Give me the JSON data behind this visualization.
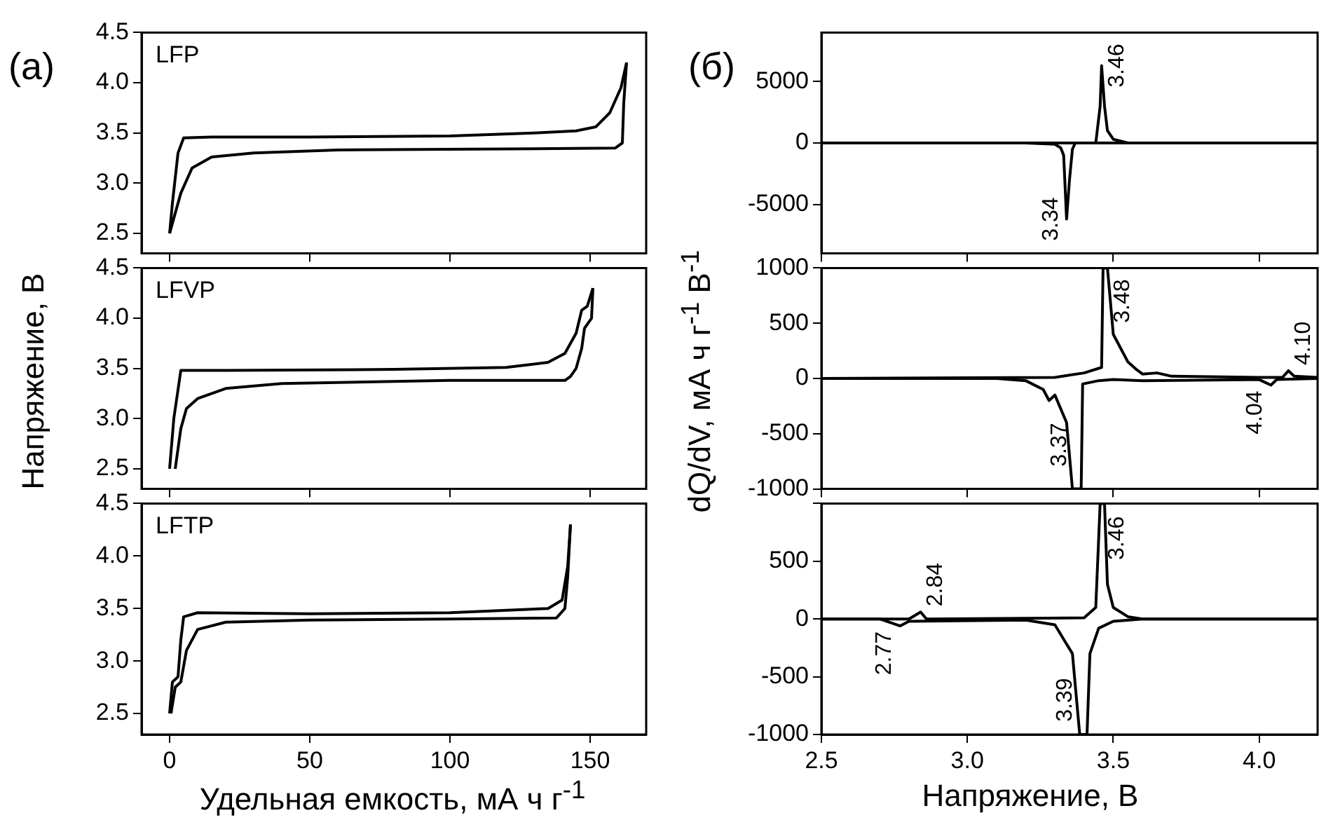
{
  "chart_data": [
    {
      "type": "line",
      "title": "LFP",
      "annotations": [
        "(a)"
      ],
      "xlim": [
        -10,
        170
      ],
      "xticks": [
        {
          "value": 0,
          "label": null
        },
        {
          "value": 50,
          "label": null
        },
        {
          "value": 100,
          "label": null
        },
        {
          "value": 150,
          "label": null
        }
      ],
      "ylim": [
        2.3,
        4.5
      ],
      "yticks": [
        {
          "value": 2.5,
          "label": "2.5"
        },
        {
          "value": 3,
          "label": "3.0"
        },
        {
          "value": 3.5,
          "label": "3.5"
        },
        {
          "value": 4,
          "label": "4.0"
        },
        {
          "value": 4.5,
          "label": "4.5"
        }
      ],
      "tick_labels": "y",
      "legend": false,
      "series": [
        {
          "color": "#000000",
          "x": [
            0,
            1,
            3,
            5,
            15,
            50,
            100,
            130,
            145,
            152,
            157,
            161,
            163
          ],
          "values": [
            2.5,
            2.8,
            3.3,
            3.45,
            3.46,
            3.46,
            3.47,
            3.5,
            3.52,
            3.56,
            3.7,
            3.95,
            4.2
          ]
        },
        {
          "color": "#000000",
          "x": [
            163,
            162,
            161.5,
            159,
            120,
            60,
            30,
            15,
            8,
            4,
            1,
            0
          ],
          "values": [
            4.2,
            3.8,
            3.4,
            3.35,
            3.34,
            3.33,
            3.3,
            3.26,
            3.15,
            2.9,
            2.6,
            2.5
          ]
        }
      ]
    },
    {
      "type": "line",
      "title": "LFVP",
      "ylabel": "Напряжение, В",
      "xlim": [
        -10,
        170
      ],
      "xticks": [
        {
          "value": 0,
          "label": null
        },
        {
          "value": 50,
          "label": null
        },
        {
          "value": 100,
          "label": null
        },
        {
          "value": 150,
          "label": null
        }
      ],
      "ylim": [
        2.3,
        4.5
      ],
      "yticks": [
        {
          "value": 2.5,
          "label": "2.5"
        },
        {
          "value": 3,
          "label": "3.0"
        },
        {
          "value": 3.5,
          "label": "3.5"
        },
        {
          "value": 4,
          "label": "4.0"
        },
        {
          "value": 4.5,
          "label": "4.5"
        }
      ],
      "tick_labels": "y",
      "legend": false,
      "series": [
        {
          "color": "#000000",
          "x": [
            0,
            1.5,
            4,
            20,
            80,
            120,
            135,
            141,
            145,
            147,
            149,
            151
          ],
          "values": [
            2.5,
            3.0,
            3.48,
            3.48,
            3.49,
            3.51,
            3.56,
            3.65,
            3.85,
            4.08,
            4.12,
            4.3
          ]
        },
        {
          "color": "#000000",
          "x": [
            151,
            150.5,
            148,
            147,
            145,
            143,
            141,
            100,
            40,
            20,
            10,
            6,
            4,
            2
          ],
          "values": [
            4.3,
            4.0,
            3.9,
            3.7,
            3.5,
            3.42,
            3.38,
            3.38,
            3.35,
            3.3,
            3.2,
            3.1,
            2.9,
            2.5
          ]
        }
      ]
    },
    {
      "type": "line",
      "title": "LFTP",
      "xlabel": "Удельная емкость, мА ч г$^{-1}$",
      "xlim": [
        -10,
        170
      ],
      "xticks": [
        0,
        50,
        100,
        150
      ],
      "ylim": [
        2.3,
        4.5
      ],
      "yticks": [
        {
          "value": 2.5,
          "label": "2.5"
        },
        {
          "value": 3,
          "label": "3.0"
        },
        {
          "value": 3.5,
          "label": "3.5"
        },
        {
          "value": 4,
          "label": "4.0"
        },
        {
          "value": 4.5,
          "label": "4.5"
        }
      ],
      "legend": false,
      "series": [
        {
          "color": "#000000",
          "x": [
            0,
            1,
            3,
            4,
            5,
            10,
            50,
            100,
            135,
            140,
            142,
            143
          ],
          "values": [
            2.5,
            2.8,
            2.85,
            3.2,
            3.42,
            3.46,
            3.45,
            3.46,
            3.5,
            3.58,
            3.9,
            4.3
          ]
        },
        {
          "color": "#000000",
          "x": [
            143,
            142,
            141,
            138,
            100,
            50,
            20,
            10,
            6,
            4,
            2,
            0.5
          ],
          "values": [
            4.3,
            3.8,
            3.5,
            3.41,
            3.4,
            3.39,
            3.37,
            3.3,
            3.1,
            2.8,
            2.75,
            2.5
          ]
        }
      ]
    },
    {
      "type": "line",
      "annotations": [
        "(б)",
        {
          "text": "3.46",
          "x": 3.46,
          "y": 6300
        },
        {
          "text": "3.34",
          "x": 3.34,
          "y": -6200
        }
      ],
      "xlim": [
        2.5,
        4.2
      ],
      "xticks": [
        {
          "value": 2.5,
          "label": null
        },
        {
          "value": 3,
          "label": null
        },
        {
          "value": 3.5,
          "label": null
        },
        {
          "value": 4,
          "label": null
        }
      ],
      "ylim": [
        -9000,
        9000
      ],
      "yticks": [
        -5000,
        0,
        5000
      ],
      "tick_labels": "y",
      "legend": false,
      "series": [
        {
          "color": "#000000",
          "x": [
            2.5,
            3.44,
            3.455,
            3.46,
            3.47,
            3.48,
            3.5,
            3.55,
            3.6,
            4.2
          ],
          "values": [
            0,
            0,
            3000,
            6300,
            3000,
            1000,
            300,
            0,
            0,
            0
          ]
        },
        {
          "color": "#000000",
          "x": [
            2.5,
            3.2,
            3.3,
            3.32,
            3.33,
            3.34,
            3.35,
            3.36,
            3.37,
            4.2
          ],
          "values": [
            0,
            0,
            -100,
            -400,
            -1000,
            -6200,
            -3000,
            -500,
            0,
            0
          ]
        }
      ]
    },
    {
      "type": "line",
      "ylabel": "dQ/dV, мА ч г$^{-1}$ В$^{-1}$",
      "annotations": [
        {
          "text": "3.48",
          "x": 3.48,
          "y": 700
        },
        {
          "text": "3.37",
          "x": 3.37,
          "y": -600
        },
        {
          "text": "4.10",
          "x": 4.1,
          "y": 70
        },
        {
          "text": "4.04",
          "x": 4.04,
          "y": -60
        }
      ],
      "xlim": [
        2.5,
        4.2
      ],
      "xticks": [
        {
          "value": 2.5,
          "label": null
        },
        {
          "value": 3,
          "label": null
        },
        {
          "value": 3.5,
          "label": null
        },
        {
          "value": 4,
          "label": null
        }
      ],
      "ylim": [
        -1000,
        1000
      ],
      "yticks": [
        -1000,
        -500,
        0,
        500,
        1000
      ],
      "tick_labels": "y",
      "legend": false,
      "series": [
        {
          "color": "#000000",
          "x": [
            2.5,
            3.3,
            3.4,
            3.46,
            3.465,
            3.48,
            3.49,
            3.5,
            3.55,
            3.58,
            3.6,
            3.65,
            3.7,
            4.0,
            4.08,
            4.1,
            4.12,
            4.2
          ],
          "values": [
            0,
            10,
            50,
            100,
            1000,
            1000,
            700,
            400,
            150,
            80,
            40,
            50,
            20,
            10,
            10,
            70,
            20,
            10
          ]
        },
        {
          "color": "#000000",
          "x": [
            2.5,
            3.1,
            3.2,
            3.26,
            3.28,
            3.3,
            3.34,
            3.36,
            3.39,
            3.395,
            3.45,
            3.5,
            3.6,
            4.0,
            4.04,
            4.06,
            4.2
          ],
          "values": [
            0,
            0,
            -20,
            -100,
            -200,
            -150,
            -400,
            -1000,
            -1000,
            -50,
            -20,
            -10,
            -20,
            -10,
            -60,
            -10,
            0
          ]
        }
      ]
    },
    {
      "type": "line",
      "xlabel": "Напряжение, В",
      "annotations": [
        {
          "text": "2.84",
          "x": 2.84,
          "y": 60
        },
        {
          "text": "2.77",
          "x": 2.77,
          "y": -60
        },
        {
          "text": "3.46",
          "x": 3.46,
          "y": 700
        },
        {
          "text": "3.39",
          "x": 3.39,
          "y": -700
        }
      ],
      "xlim": [
        2.5,
        4.2
      ],
      "xticks": [
        {
          "value": 2.5,
          "label": "2.5"
        },
        {
          "value": 3,
          "label": "3.0"
        },
        {
          "value": 3.5,
          "label": "3.5"
        },
        {
          "value": 4,
          "label": "4.0"
        }
      ],
      "ylim": [
        -1000,
        1000
      ],
      "yticks": [
        -1000,
        -500,
        0,
        500,
        {
          "value": 1000,
          "label": null
        }
      ],
      "legend": false,
      "series": [
        {
          "color": "#000000",
          "x": [
            2.5,
            2.8,
            2.84,
            2.86,
            3.4,
            3.44,
            3.455,
            3.47,
            3.48,
            3.5,
            3.55,
            3.6,
            4.2
          ],
          "values": [
            0,
            0,
            60,
            0,
            10,
            100,
            1000,
            1000,
            300,
            100,
            20,
            0,
            0
          ]
        },
        {
          "color": "#000000",
          "x": [
            2.5,
            2.7,
            2.77,
            2.8,
            3.2,
            3.3,
            3.36,
            3.385,
            3.41,
            3.42,
            3.45,
            3.5,
            3.6,
            4.2
          ],
          "values": [
            0,
            0,
            -60,
            -20,
            -10,
            -50,
            -300,
            -1000,
            -1000,
            -300,
            -80,
            -20,
            0,
            0
          ]
        }
      ]
    }
  ]
}
